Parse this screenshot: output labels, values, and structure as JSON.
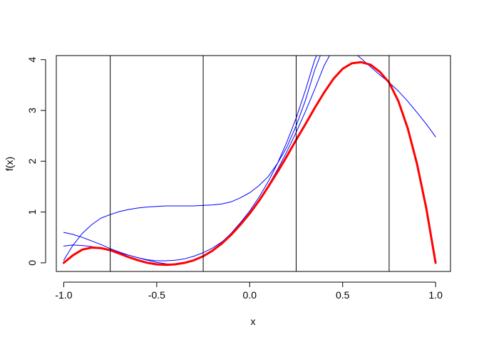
{
  "chart_data": {
    "type": "line",
    "title": "",
    "xlabel": "x",
    "ylabel": "f(x)",
    "xlim": [
      -1.04,
      1.08
    ],
    "ylim": [
      -0.17,
      4.08
    ],
    "grid": false,
    "legend": "none",
    "x_ticks": [
      -1.0,
      -0.5,
      0.0,
      0.5,
      1.0
    ],
    "x_tick_labels": [
      "-1.0",
      "-0.5",
      "0.0",
      "0.5",
      "1.0"
    ],
    "y_ticks": [
      0,
      1,
      2,
      3,
      4
    ],
    "y_tick_labels": [
      "0",
      "1",
      "2",
      "3",
      "4"
    ],
    "vertical_lines": [
      -0.75,
      -0.25,
      0.25,
      0.75
    ],
    "colors": {
      "function": "#ff0000",
      "approximations": "#0000ff",
      "vlines": "#000000",
      "axes": "#000000"
    },
    "series": [
      {
        "color": "#ff0000",
        "width": 3,
        "points": [
          [
            -1.0,
            0.0
          ],
          [
            -0.95,
            0.15
          ],
          [
            -0.9,
            0.26
          ],
          [
            -0.85,
            0.3
          ],
          [
            -0.8,
            0.29
          ],
          [
            -0.75,
            0.25
          ],
          [
            -0.7,
            0.18
          ],
          [
            -0.65,
            0.11
          ],
          [
            -0.6,
            0.05
          ],
          [
            -0.55,
            0.0
          ],
          [
            -0.5,
            -0.03
          ],
          [
            -0.45,
            -0.04
          ],
          [
            -0.4,
            -0.03
          ],
          [
            -0.35,
            0.0
          ],
          [
            -0.3,
            0.05
          ],
          [
            -0.25,
            0.13
          ],
          [
            -0.2,
            0.24
          ],
          [
            -0.15,
            0.38
          ],
          [
            -0.1,
            0.55
          ],
          [
            -0.05,
            0.75
          ],
          [
            0.0,
            0.97
          ],
          [
            0.05,
            1.22
          ],
          [
            0.1,
            1.5
          ],
          [
            0.15,
            1.79
          ],
          [
            0.2,
            2.1
          ],
          [
            0.25,
            2.42
          ],
          [
            0.3,
            2.73
          ],
          [
            0.35,
            3.05
          ],
          [
            0.4,
            3.35
          ],
          [
            0.45,
            3.62
          ],
          [
            0.5,
            3.82
          ],
          [
            0.55,
            3.93
          ],
          [
            0.6,
            3.95
          ],
          [
            0.65,
            3.9
          ],
          [
            0.7,
            3.76
          ],
          [
            0.75,
            3.55
          ],
          [
            0.8,
            3.18
          ],
          [
            0.85,
            2.65
          ],
          [
            0.9,
            1.95
          ],
          [
            0.95,
            1.07
          ],
          [
            1.0,
            0.0
          ]
        ]
      },
      {
        "color": "#0000ff",
        "width": 1,
        "points": [
          [
            -1.0,
            0.05
          ],
          [
            -0.95,
            0.35
          ],
          [
            -0.9,
            0.58
          ],
          [
            -0.85,
            0.75
          ],
          [
            -0.8,
            0.88
          ],
          [
            -0.75,
            0.95
          ],
          [
            -0.7,
            1.01
          ],
          [
            -0.65,
            1.05
          ],
          [
            -0.6,
            1.08
          ],
          [
            -0.55,
            1.1
          ],
          [
            -0.5,
            1.11
          ],
          [
            -0.45,
            1.12
          ],
          [
            -0.4,
            1.12
          ],
          [
            -0.35,
            1.12
          ],
          [
            -0.3,
            1.12
          ],
          [
            -0.25,
            1.13
          ],
          [
            -0.2,
            1.14
          ],
          [
            -0.15,
            1.16
          ],
          [
            -0.1,
            1.2
          ],
          [
            -0.05,
            1.28
          ],
          [
            0.0,
            1.38
          ],
          [
            0.05,
            1.52
          ],
          [
            0.1,
            1.7
          ],
          [
            0.15,
            1.96
          ],
          [
            0.2,
            2.28
          ],
          [
            0.25,
            2.7
          ],
          [
            0.3,
            3.2
          ],
          [
            0.35,
            3.8
          ],
          [
            0.38,
            4.08
          ]
        ]
      },
      {
        "color": "#0000ff",
        "width": 1,
        "points": [
          [
            -1.0,
            0.33
          ],
          [
            -0.95,
            0.35
          ],
          [
            -0.9,
            0.34
          ],
          [
            -0.85,
            0.32
          ],
          [
            -0.8,
            0.29
          ],
          [
            -0.75,
            0.25
          ],
          [
            -0.7,
            0.2
          ],
          [
            -0.65,
            0.15
          ],
          [
            -0.6,
            0.1
          ],
          [
            -0.55,
            0.05
          ],
          [
            -0.5,
            0.01
          ],
          [
            -0.45,
            -0.02
          ],
          [
            -0.4,
            -0.03
          ],
          [
            -0.35,
            -0.01
          ],
          [
            -0.3,
            0.04
          ],
          [
            -0.25,
            0.13
          ],
          [
            -0.2,
            0.25
          ],
          [
            -0.15,
            0.4
          ],
          [
            -0.1,
            0.58
          ],
          [
            -0.05,
            0.79
          ],
          [
            0.0,
            1.02
          ],
          [
            0.05,
            1.29
          ],
          [
            0.1,
            1.6
          ],
          [
            0.15,
            1.96
          ],
          [
            0.2,
            2.38
          ],
          [
            0.25,
            2.85
          ],
          [
            0.3,
            3.4
          ],
          [
            0.35,
            4.0
          ],
          [
            0.36,
            4.08
          ]
        ]
      },
      {
        "color": "#0000ff",
        "width": 1,
        "points": [
          [
            -1.0,
            0.6
          ],
          [
            -0.95,
            0.56
          ],
          [
            -0.9,
            0.5
          ],
          [
            -0.85,
            0.43
          ],
          [
            -0.8,
            0.36
          ],
          [
            -0.75,
            0.28
          ],
          [
            -0.7,
            0.21
          ],
          [
            -0.65,
            0.15
          ],
          [
            -0.6,
            0.1
          ],
          [
            -0.55,
            0.06
          ],
          [
            -0.5,
            0.04
          ],
          [
            -0.45,
            0.04
          ],
          [
            -0.4,
            0.05
          ],
          [
            -0.35,
            0.08
          ],
          [
            -0.3,
            0.13
          ],
          [
            -0.25,
            0.2
          ],
          [
            -0.2,
            0.29
          ],
          [
            -0.15,
            0.41
          ],
          [
            -0.1,
            0.57
          ],
          [
            -0.05,
            0.76
          ],
          [
            0.0,
            0.98
          ],
          [
            0.05,
            1.23
          ],
          [
            0.1,
            1.52
          ],
          [
            0.15,
            1.84
          ],
          [
            0.2,
            2.19
          ],
          [
            0.25,
            2.57
          ],
          [
            0.3,
            2.98
          ],
          [
            0.35,
            3.42
          ],
          [
            0.4,
            3.88
          ],
          [
            0.43,
            4.08
          ]
        ]
      },
      {
        "color": "#0000ff",
        "width": 1,
        "points": [
          [
            0.58,
            4.08
          ],
          [
            0.6,
            4.02
          ],
          [
            0.65,
            3.86
          ],
          [
            0.7,
            3.7
          ],
          [
            0.75,
            3.55
          ],
          [
            0.8,
            3.38
          ],
          [
            0.85,
            3.18
          ],
          [
            0.9,
            2.96
          ],
          [
            0.95,
            2.73
          ],
          [
            1.0,
            2.48
          ]
        ]
      }
    ]
  }
}
